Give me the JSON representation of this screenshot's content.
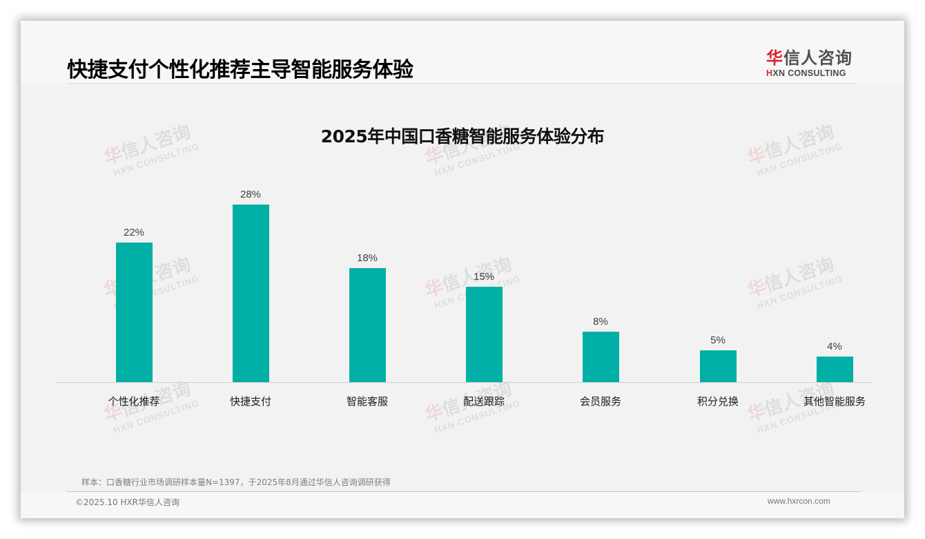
{
  "header": {
    "title": "快捷支付个性化推荐主导智能服务体验",
    "logo": {
      "cn_first": "华",
      "cn_rest": "信人咨询",
      "en_first": "H",
      "en_rest": "XN CONSULTING"
    }
  },
  "watermark": {
    "cn_first": "华",
    "cn_rest": "信人咨询",
    "en": "HXN CONSULTING"
  },
  "chart_data": {
    "type": "bar",
    "title": "2025年中国口香糖智能服务体验分布",
    "categories": [
      "个性化推荐",
      "快捷支付",
      "智能客服",
      "配送跟踪",
      "会员服务",
      "积分兑换",
      "其他智能服务"
    ],
    "values": [
      22,
      28,
      18,
      15,
      8,
      5,
      4
    ],
    "labels": [
      "22%",
      "28%",
      "18%",
      "15%",
      "8%",
      "5%",
      "4%"
    ],
    "unit": "%",
    "xlabel": "",
    "ylabel": "",
    "ylim": [
      0,
      30
    ],
    "grid": false,
    "legend": null,
    "color": "#00afa6"
  },
  "footer": {
    "note": "样本：口香糖行业市场调研样本量N=1397，于2025年8月通过华信人咨询调研获得",
    "copyright": "©2025.10 HXR华信人咨询",
    "website": "www.hxrcon.com"
  }
}
